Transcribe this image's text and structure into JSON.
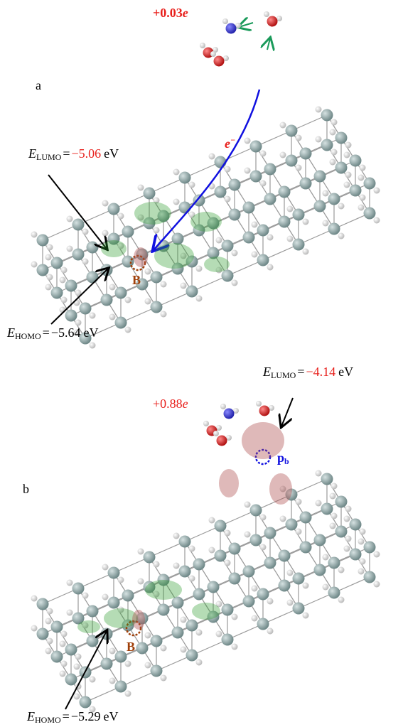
{
  "panel_a": {
    "label": "a",
    "charge": {
      "value": "+0.03",
      "unit": "e"
    },
    "electron": {
      "symbol": "e",
      "superscript": "−"
    },
    "lumo": {
      "symbol": "E",
      "subscript": "LUMO",
      "equals": "=",
      "value": "−5.06",
      "unit": "eV"
    },
    "homo": {
      "symbol": "E",
      "subscript": "HOMO",
      "equals": "=",
      "value": "−5.64",
      "unit": "eV"
    },
    "site": "B"
  },
  "panel_b": {
    "label": "b",
    "charge": {
      "value": "+0.88",
      "unit": "e"
    },
    "lumo": {
      "symbol": "E",
      "subscript": "LUMO",
      "equals": "=",
      "value": "−4.14",
      "unit": "eV"
    },
    "homo": {
      "symbol": "E",
      "subscript": "HOMO",
      "equals": "=",
      "value": "−5.29",
      "unit": "eV"
    },
    "site": "B",
    "defect": {
      "symbol": "p",
      "subscript": "b"
    }
  }
}
